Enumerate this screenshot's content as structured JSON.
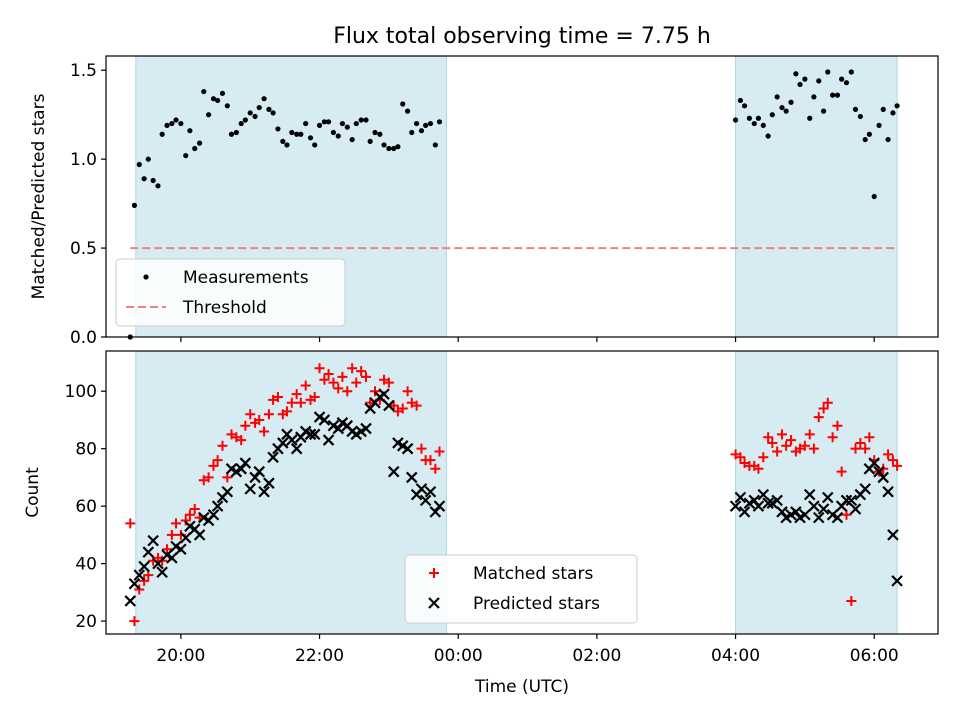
{
  "chart_data": [
    {
      "type": "scatter",
      "title": "Flux total observing time = 7.75 h",
      "xlabel": "",
      "ylabel": "Matched/Predicted stars",
      "ylim": [
        0,
        1.58
      ],
      "yticks": [
        0.0,
        0.5,
        1.0,
        1.5
      ],
      "ytick_labels": [
        "0.0",
        "0.5",
        "1.0",
        "1.5"
      ],
      "shaded_intervals": [
        [
          19.35,
          23.83
        ],
        [
          28.0,
          30.33
        ]
      ],
      "threshold": 0.5,
      "legend_position": "lower-left",
      "series": [
        {
          "name": "Measurements",
          "marker": "dot",
          "color": "#000000",
          "x": [
            19.27,
            19.33,
            19.4,
            19.47,
            19.53,
            19.6,
            19.67,
            19.73,
            19.8,
            19.87,
            19.93,
            20.0,
            20.07,
            20.13,
            20.2,
            20.27,
            20.33,
            20.4,
            20.47,
            20.53,
            20.6,
            20.67,
            20.73,
            20.8,
            20.87,
            20.93,
            21.0,
            21.07,
            21.13,
            21.2,
            21.27,
            21.33,
            21.4,
            21.47,
            21.53,
            21.6,
            21.67,
            21.73,
            21.8,
            21.87,
            21.93,
            22.0,
            22.07,
            22.13,
            22.2,
            22.27,
            22.33,
            22.4,
            22.47,
            22.53,
            22.6,
            22.67,
            22.73,
            22.8,
            22.87,
            22.93,
            23.0,
            23.07,
            23.13,
            23.2,
            23.27,
            23.33,
            23.4,
            23.47,
            23.53,
            23.6,
            23.67,
            23.73,
            28.0,
            28.07,
            28.13,
            28.2,
            28.27,
            28.33,
            28.4,
            28.47,
            28.53,
            28.6,
            28.67,
            28.73,
            28.8,
            28.87,
            28.93,
            29.0,
            29.07,
            29.13,
            29.2,
            29.27,
            29.33,
            29.4,
            29.47,
            29.53,
            29.6,
            29.67,
            29.73,
            29.8,
            29.87,
            29.93,
            30.0,
            30.07,
            30.13,
            30.2,
            30.27,
            30.33
          ],
          "y": [
            0.0,
            0.74,
            0.97,
            0.89,
            1.0,
            0.88,
            0.85,
            1.14,
            1.19,
            1.2,
            1.22,
            1.2,
            1.02,
            1.16,
            1.06,
            1.09,
            1.38,
            1.25,
            1.34,
            1.33,
            1.37,
            1.3,
            1.14,
            1.15,
            1.2,
            1.22,
            1.26,
            1.24,
            1.29,
            1.34,
            1.28,
            1.26,
            1.17,
            1.1,
            1.08,
            1.15,
            1.14,
            1.14,
            1.2,
            1.12,
            1.08,
            1.19,
            1.21,
            1.21,
            1.15,
            1.13,
            1.2,
            1.18,
            1.11,
            1.2,
            1.22,
            1.22,
            1.1,
            1.15,
            1.14,
            1.08,
            1.06,
            1.06,
            1.07,
            1.31,
            1.27,
            1.15,
            1.2,
            1.16,
            1.19,
            1.2,
            1.08,
            1.21,
            1.22,
            1.33,
            1.3,
            1.23,
            1.2,
            1.23,
            1.19,
            1.13,
            1.25,
            1.35,
            1.29,
            1.27,
            1.32,
            1.48,
            1.42,
            1.45,
            1.23,
            1.35,
            1.44,
            1.27,
            1.49,
            1.36,
            1.36,
            1.45,
            1.43,
            1.49,
            1.28,
            1.24,
            1.11,
            1.14,
            0.79,
            1.19,
            1.28,
            1.11,
            1.26,
            1.3
          ]
        },
        {
          "name": "Threshold",
          "marker": "dashed-line",
          "color": "#f08080"
        }
      ]
    },
    {
      "type": "scatter",
      "title": "",
      "xlabel": "Time (UTC)",
      "ylabel": "Count",
      "xlim": [
        18.92,
        30.92
      ],
      "ylim": [
        15.5,
        114
      ],
      "yticks": [
        20,
        40,
        60,
        80,
        100
      ],
      "ytick_labels": [
        "20",
        "40",
        "60",
        "80",
        "100"
      ],
      "xticks": [
        20,
        22,
        24,
        26,
        28,
        30
      ],
      "xtick_labels": [
        "20:00",
        "22:00",
        "00:00",
        "02:00",
        "04:00",
        "06:00"
      ],
      "shaded_intervals": [
        [
          19.35,
          23.83
        ],
        [
          28.0,
          30.33
        ]
      ],
      "legend_position": "bottom-center",
      "series": [
        {
          "name": "Matched stars",
          "marker": "plus",
          "color": "#ff0000",
          "x": [
            19.27,
            19.33,
            19.4,
            19.47,
            19.53,
            19.6,
            19.67,
            19.73,
            19.8,
            19.87,
            19.93,
            20.0,
            20.07,
            20.13,
            20.2,
            20.27,
            20.33,
            20.4,
            20.47,
            20.53,
            20.6,
            20.67,
            20.73,
            20.8,
            20.87,
            20.93,
            21.0,
            21.07,
            21.13,
            21.2,
            21.27,
            21.33,
            21.4,
            21.47,
            21.53,
            21.6,
            21.67,
            21.73,
            21.8,
            21.87,
            21.93,
            22.0,
            22.07,
            22.13,
            22.2,
            22.27,
            22.33,
            22.4,
            22.47,
            22.53,
            22.6,
            22.67,
            22.73,
            22.8,
            22.87,
            22.93,
            23.0,
            23.07,
            23.13,
            23.2,
            23.27,
            23.33,
            23.4,
            23.47,
            23.53,
            23.6,
            23.67,
            23.73,
            28.0,
            28.07,
            28.13,
            28.2,
            28.27,
            28.33,
            28.4,
            28.47,
            28.53,
            28.6,
            28.67,
            28.73,
            28.8,
            28.87,
            28.93,
            29.0,
            29.07,
            29.13,
            29.2,
            29.27,
            29.33,
            29.4,
            29.47,
            29.53,
            29.6,
            29.67,
            29.73,
            29.8,
            29.87,
            29.93,
            30.0,
            30.07,
            30.13,
            30.2,
            30.27,
            30.33
          ],
          "y": [
            54,
            20,
            31,
            34,
            36,
            41,
            42,
            41,
            45,
            50,
            54,
            50,
            55,
            57,
            59,
            56,
            69,
            70,
            74,
            76,
            81,
            70,
            85,
            84,
            83,
            88,
            92,
            89,
            90,
            86,
            92,
            97,
            98,
            92,
            93,
            96,
            99,
            96,
            102,
            97,
            98,
            108,
            104,
            106,
            103,
            101,
            105,
            100,
            108,
            103,
            107,
            105,
            96,
            100,
            97,
            104,
            103,
            95,
            93,
            94,
            100,
            96,
            95,
            80,
            76,
            76,
            73,
            79,
            78,
            77,
            75,
            74,
            74,
            73,
            77,
            84,
            82,
            79,
            85,
            81,
            83,
            79,
            80,
            81,
            85,
            80,
            91,
            94,
            96,
            84,
            88,
            72,
            57,
            27,
            80,
            82,
            80,
            84,
            76,
            72,
            73,
            78,
            76,
            74
          ]
        },
        {
          "name": "Predicted stars",
          "marker": "x",
          "color": "#000000",
          "x": [
            19.27,
            19.33,
            19.4,
            19.47,
            19.53,
            19.6,
            19.67,
            19.73,
            19.8,
            19.87,
            19.93,
            20.0,
            20.07,
            20.13,
            20.2,
            20.27,
            20.33,
            20.4,
            20.47,
            20.53,
            20.6,
            20.67,
            20.73,
            20.8,
            20.87,
            20.93,
            21.0,
            21.07,
            21.13,
            21.2,
            21.27,
            21.33,
            21.4,
            21.47,
            21.53,
            21.6,
            21.67,
            21.73,
            21.8,
            21.87,
            21.93,
            22.0,
            22.07,
            22.13,
            22.2,
            22.27,
            22.33,
            22.4,
            22.47,
            22.53,
            22.6,
            22.67,
            22.73,
            22.8,
            22.87,
            22.93,
            23.0,
            23.07,
            23.13,
            23.2,
            23.27,
            23.33,
            23.4,
            23.47,
            23.53,
            23.6,
            23.67,
            23.73,
            28.0,
            28.07,
            28.13,
            28.2,
            28.27,
            28.33,
            28.4,
            28.47,
            28.53,
            28.6,
            28.67,
            28.73,
            28.8,
            28.87,
            28.93,
            29.0,
            29.07,
            29.13,
            29.2,
            29.27,
            29.33,
            29.4,
            29.47,
            29.53,
            29.6,
            29.67,
            29.73,
            29.8,
            29.87,
            29.93,
            30.0,
            30.07,
            30.13,
            30.2,
            30.27,
            30.33
          ],
          "y": [
            27,
            33,
            36,
            39,
            44,
            48,
            40,
            37,
            43,
            42,
            46,
            45,
            49,
            53,
            52,
            50,
            56,
            55,
            57,
            60,
            63,
            65,
            73,
            72,
            73,
            75,
            66,
            70,
            72,
            65,
            68,
            77,
            80,
            82,
            85,
            83,
            80,
            84,
            86,
            85,
            85,
            91,
            90,
            83,
            88,
            87,
            89,
            88,
            86,
            85,
            86,
            87,
            94,
            96,
            98,
            99,
            95,
            72,
            82,
            81,
            80,
            70,
            64,
            66,
            62,
            65,
            58,
            60,
            60,
            63,
            58,
            61,
            62,
            60,
            64,
            61,
            61,
            62,
            58,
            56,
            57,
            58,
            56,
            57,
            64,
            60,
            56,
            59,
            63,
            57,
            56,
            60,
            62,
            62,
            59,
            64,
            66,
            73,
            75,
            72,
            70,
            65,
            50,
            34
          ]
        }
      ]
    }
  ]
}
